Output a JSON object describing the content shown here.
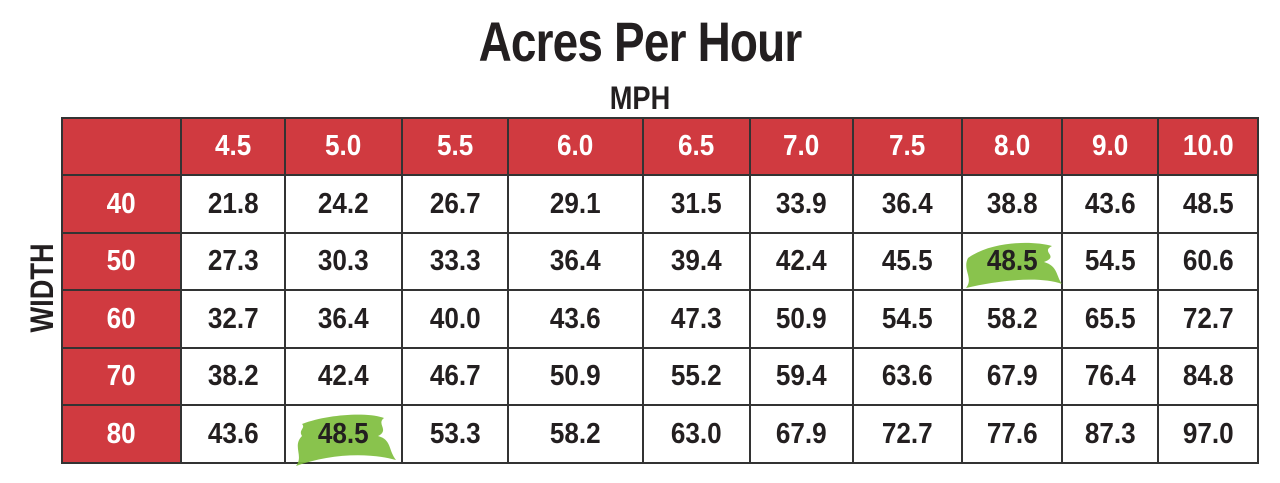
{
  "title": "Acres Per Hour",
  "column_axis": "MPH",
  "row_axis": "WIDTH",
  "table": {
    "columns": [
      "4.5",
      "5.0",
      "5.5",
      "6.0",
      "6.5",
      "7.0",
      "7.5",
      "8.0",
      "9.0",
      "10.0"
    ],
    "rows": [
      {
        "label": "40",
        "cells": [
          "21.8",
          "24.2",
          "26.7",
          "29.1",
          "31.5",
          "33.9",
          "36.4",
          "38.8",
          "43.6",
          "48.5"
        ]
      },
      {
        "label": "50",
        "cells": [
          "27.3",
          "30.3",
          "33.3",
          "36.4",
          "39.4",
          "42.4",
          "45.5",
          "48.5",
          "54.5",
          "60.6"
        ]
      },
      {
        "label": "60",
        "cells": [
          "32.7",
          "36.4",
          "40.0",
          "43.6",
          "47.3",
          "50.9",
          "54.5",
          "58.2",
          "65.5",
          "72.7"
        ]
      },
      {
        "label": "70",
        "cells": [
          "38.2",
          "42.4",
          "46.7",
          "50.9",
          "55.2",
          "59.4",
          "63.6",
          "67.9",
          "76.4",
          "84.8"
        ]
      },
      {
        "label": "80",
        "cells": [
          "43.6",
          "48.5",
          "53.3",
          "58.2",
          "63.0",
          "67.9",
          "72.7",
          "77.6",
          "87.3",
          "97.0"
        ]
      }
    ]
  }
}
